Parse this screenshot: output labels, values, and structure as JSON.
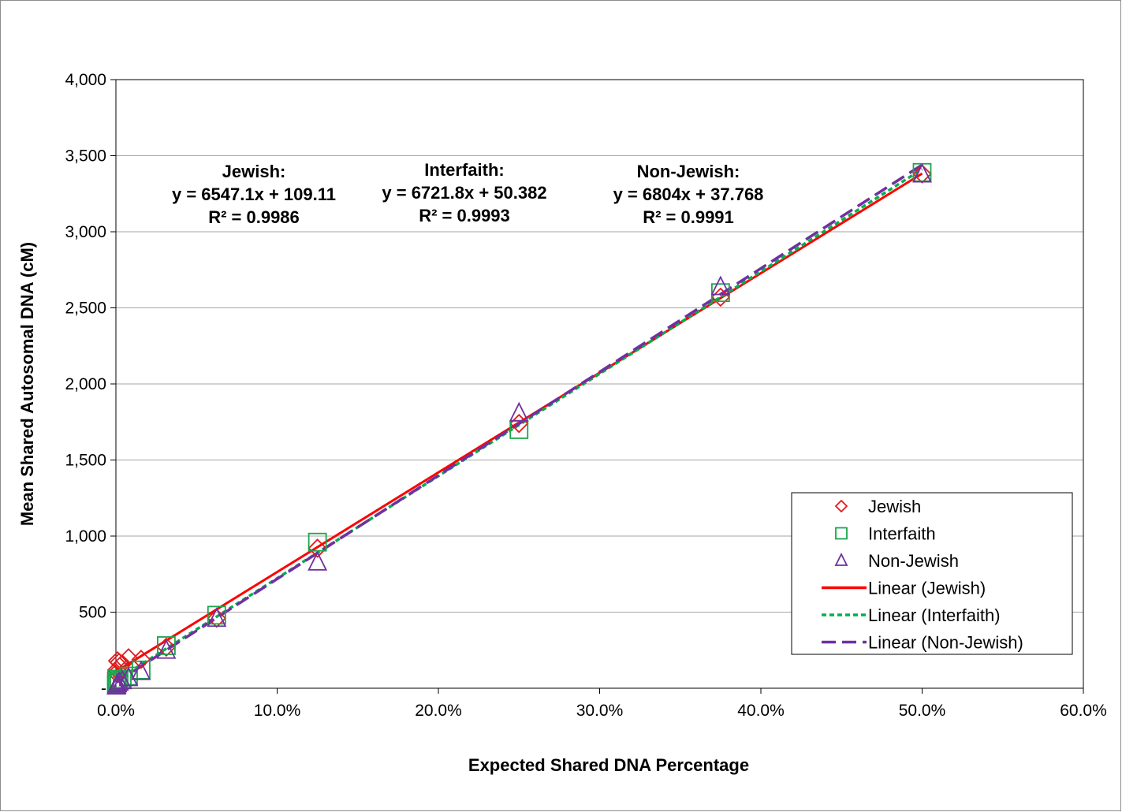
{
  "chart_data": {
    "type": "scatter",
    "xlabel": "Expected Shared DNA Percentage",
    "ylabel": "Mean Shared Autosomal  DNA (cM)",
    "xlim": [
      0,
      0.6
    ],
    "ylim": [
      0,
      4000
    ],
    "x_ticks": [
      0,
      0.1,
      0.2,
      0.3,
      0.4,
      0.5,
      0.6
    ],
    "x_tick_labels": [
      "0.0%",
      "10.0%",
      "20.0%",
      "30.0%",
      "40.0%",
      "50.0%",
      "60.0%"
    ],
    "y_ticks": [
      0,
      500,
      1000,
      1500,
      2000,
      2500,
      3000,
      3500,
      4000
    ],
    "y_tick_labels": [
      "-",
      "500",
      "1,000",
      "1,500",
      "2,000",
      "2,500",
      "3,000",
      "3,500",
      "4,000"
    ],
    "grid": "horizontal",
    "legend_position": "bottom-right",
    "series": [
      {
        "name": "Jewish",
        "marker": "diamond",
        "color": "#e31a1c",
        "points": [
          [
            0.5,
            3380
          ],
          [
            0.375,
            2570
          ],
          [
            0.25,
            1740
          ],
          [
            0.125,
            920
          ],
          [
            0.0625,
            460
          ],
          [
            0.03125,
            270
          ],
          [
            0.015625,
            190
          ],
          [
            0.0078125,
            200
          ],
          [
            0.00390625,
            160
          ],
          [
            0.001953125,
            170
          ],
          [
            0.0009765625,
            180
          ],
          [
            0.00048828125,
            120
          ],
          [
            0.000244140625,
            100
          ]
        ]
      },
      {
        "name": "Interfaith",
        "marker": "square",
        "color": "#1aa64a",
        "points": [
          [
            0.5,
            3390
          ],
          [
            0.375,
            2600
          ],
          [
            0.25,
            1700
          ],
          [
            0.125,
            960
          ],
          [
            0.0625,
            480
          ],
          [
            0.03125,
            280
          ],
          [
            0.015625,
            120
          ],
          [
            0.0078125,
            80
          ],
          [
            0.00390625,
            60
          ],
          [
            0.001953125,
            50
          ],
          [
            0.0009765625,
            40
          ],
          [
            0.00048828125,
            60
          ],
          [
            0.000244140625,
            30
          ]
        ]
      },
      {
        "name": "Non-Jewish",
        "marker": "triangle",
        "color": "#7030a0",
        "points": [
          [
            0.5,
            3380
          ],
          [
            0.375,
            2640
          ],
          [
            0.25,
            1810
          ],
          [
            0.125,
            830
          ],
          [
            0.0625,
            460
          ],
          [
            0.03125,
            250
          ],
          [
            0.015625,
            110
          ],
          [
            0.0078125,
            70
          ],
          [
            0.00390625,
            50
          ],
          [
            0.001953125,
            40
          ],
          [
            0.0009765625,
            30
          ],
          [
            0.00048828125,
            20
          ],
          [
            0.000244140625,
            15
          ]
        ]
      }
    ],
    "trendlines": [
      {
        "name": "Linear (Jewish)",
        "series": "Jewish",
        "slope": 6547.1,
        "intercept": 109.11,
        "x_range": [
          0,
          0.5
        ],
        "color": "#ff0000",
        "style": "solid"
      },
      {
        "name": "Linear (Interfaith)",
        "series": "Interfaith",
        "slope": 6721.8,
        "intercept": 50.382,
        "x_range": [
          0,
          0.5
        ],
        "color": "#00b050",
        "style": "dotted"
      },
      {
        "name": "Linear (Non-Jewish)",
        "series": "Non-Jewish",
        "slope": 6804,
        "intercept": 37.768,
        "x_range": [
          0,
          0.5
        ],
        "color": "#7030a0",
        "style": "dashed"
      }
    ],
    "annotations": [
      {
        "lines": [
          "Jewish:",
          "y = 6547.1x + 109.11",
          "R² = 0.9986"
        ]
      },
      {
        "lines": [
          "Interfaith:",
          "y = 6721.8x + 50.382",
          "R² = 0.9993"
        ]
      },
      {
        "lines": [
          "Non-Jewish:",
          "y = 6804x + 37.768",
          "R² = 0.9991"
        ]
      }
    ],
    "legend": [
      {
        "label": "Jewish",
        "kind": "marker",
        "marker": "diamond",
        "color": "#e31a1c"
      },
      {
        "label": "Interfaith",
        "kind": "marker",
        "marker": "square",
        "color": "#1aa64a"
      },
      {
        "label": "Non-Jewish",
        "kind": "marker",
        "marker": "triangle",
        "color": "#7030a0"
      },
      {
        "label": "Linear (Jewish)",
        "kind": "line",
        "style": "solid",
        "color": "#ff0000"
      },
      {
        "label": "Linear (Interfaith)",
        "kind": "line",
        "style": "dotted",
        "color": "#00b050"
      },
      {
        "label": "Linear (Non-Jewish)",
        "kind": "line",
        "style": "dashed",
        "color": "#7030a0"
      }
    ]
  }
}
